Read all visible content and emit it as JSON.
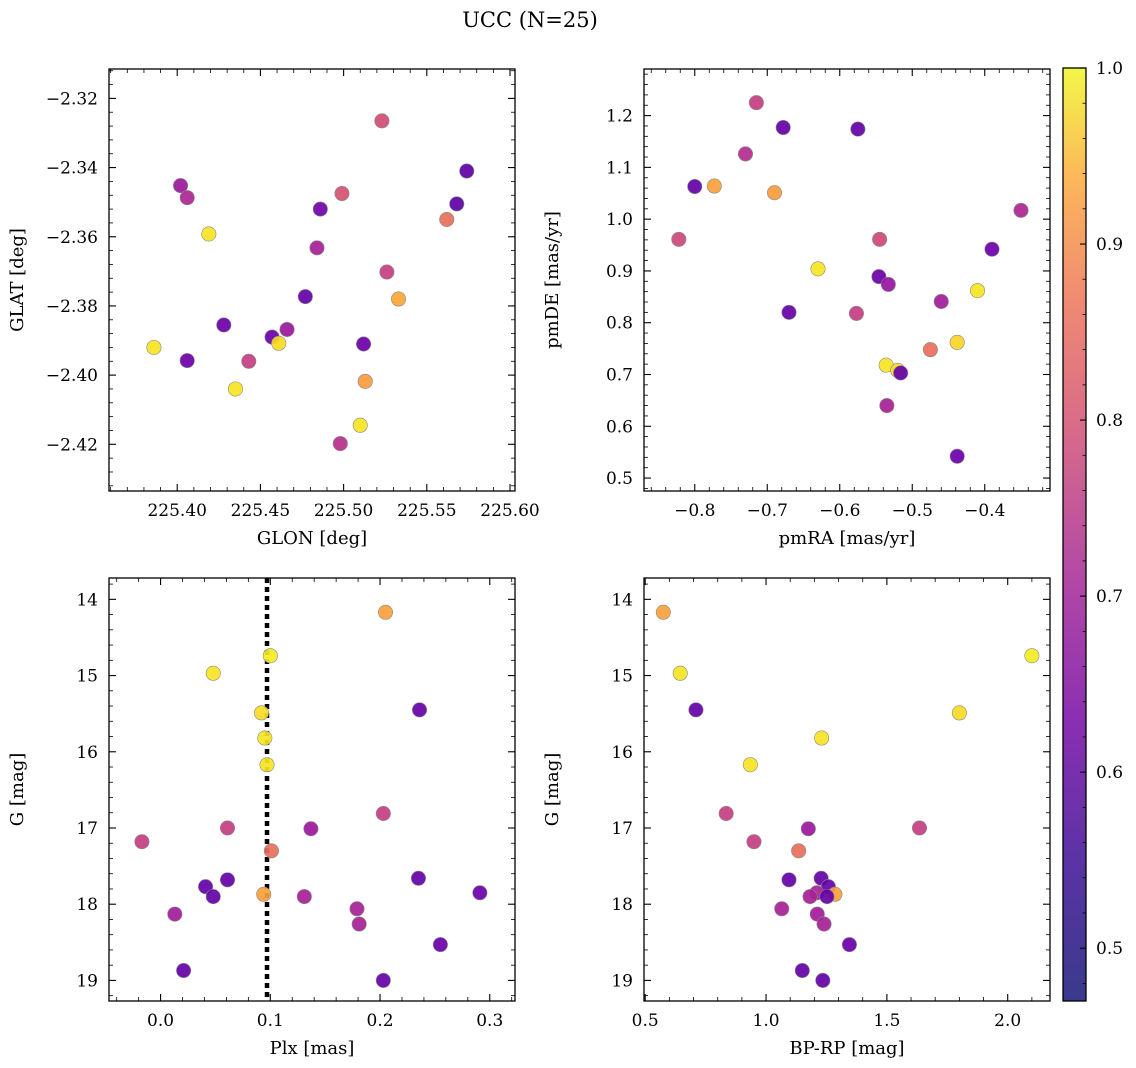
{
  "title": "UCC (N=25)",
  "colorbar": {
    "min": 0.47,
    "max": 1.0,
    "ticks": [
      0.5,
      0.6,
      0.7,
      0.8,
      0.9,
      1.0
    ],
    "tick_labels": [
      "0.5",
      "0.6",
      "0.7",
      "0.8",
      "0.9",
      "1.0"
    ],
    "colormap": "plasma"
  },
  "chart_data": [
    {
      "type": "scatter",
      "name": "glon-glat",
      "xlabel": "GLON [deg]",
      "ylabel": "GLAT [deg]",
      "xlim": [
        225.359,
        225.603
      ],
      "ylim": [
        -2.4335,
        -2.3115
      ],
      "xticks": [
        225.4,
        225.45,
        225.5,
        225.55,
        225.6
      ],
      "xtick_labels": [
        "225.40",
        "225.45",
        "225.50",
        "225.55",
        "225.60"
      ],
      "yticks": [
        -2.42,
        -2.4,
        -2.38,
        -2.36,
        -2.34,
        -2.32
      ],
      "ytick_labels": [
        "−2.42",
        "−2.40",
        "−2.38",
        "−2.36",
        "−2.34",
        "−2.32"
      ],
      "points": [
        {
          "x": 225.523,
          "y": -2.3265,
          "c": 0.71
        },
        {
          "x": 225.574,
          "y": -2.341,
          "c": 0.5
        },
        {
          "x": 225.402,
          "y": -2.3452,
          "c": 0.6
        },
        {
          "x": 225.406,
          "y": -2.3487,
          "c": 0.63
        },
        {
          "x": 225.499,
          "y": -2.3475,
          "c": 0.72
        },
        {
          "x": 225.568,
          "y": -2.3505,
          "c": 0.5
        },
        {
          "x": 225.486,
          "y": -2.352,
          "c": 0.53
        },
        {
          "x": 225.562,
          "y": -2.355,
          "c": 0.78
        },
        {
          "x": 225.419,
          "y": -2.3592,
          "c": 0.97
        },
        {
          "x": 225.484,
          "y": -2.3632,
          "c": 0.62
        },
        {
          "x": 225.526,
          "y": -2.3702,
          "c": 0.68
        },
        {
          "x": 225.477,
          "y": -2.3773,
          "c": 0.51
        },
        {
          "x": 225.533,
          "y": -2.378,
          "c": 0.88
        },
        {
          "x": 225.428,
          "y": -2.3855,
          "c": 0.52
        },
        {
          "x": 225.466,
          "y": -2.3868,
          "c": 0.6
        },
        {
          "x": 225.457,
          "y": -2.389,
          "c": 0.52
        },
        {
          "x": 225.512,
          "y": -2.391,
          "c": 0.52
        },
        {
          "x": 225.461,
          "y": -2.3908,
          "c": 0.96
        },
        {
          "x": 225.386,
          "y": -2.392,
          "c": 0.97
        },
        {
          "x": 225.406,
          "y": -2.3958,
          "c": 0.52
        },
        {
          "x": 225.443,
          "y": -2.396,
          "c": 0.68
        },
        {
          "x": 225.513,
          "y": -2.4018,
          "c": 0.86
        },
        {
          "x": 225.435,
          "y": -2.404,
          "c": 0.97
        },
        {
          "x": 225.51,
          "y": -2.4145,
          "c": 0.97
        },
        {
          "x": 225.498,
          "y": -2.4198,
          "c": 0.65
        }
      ]
    },
    {
      "type": "scatter",
      "name": "pmra-pmde",
      "xlabel": "pmRA [mas/yr]",
      "ylabel": "pmDE [mas/yr]",
      "xlim": [
        -0.87,
        -0.31
      ],
      "ylim": [
        0.475,
        1.29
      ],
      "xticks": [
        -0.8,
        -0.7,
        -0.6,
        -0.5,
        -0.4
      ],
      "xtick_labels": [
        "−0.8",
        "−0.7",
        "−0.6",
        "−0.5",
        "−0.4"
      ],
      "yticks": [
        0.5,
        0.6,
        0.7,
        0.8,
        0.9,
        1.0,
        1.1,
        1.2
      ],
      "ytick_labels": [
        "0.5",
        "0.6",
        "0.7",
        "0.8",
        "0.9",
        "1.0",
        "1.1",
        "1.2"
      ],
      "points": [
        {
          "x": -0.715,
          "y": 1.225,
          "c": 0.68
        },
        {
          "x": -0.678,
          "y": 1.177,
          "c": 0.51
        },
        {
          "x": -0.575,
          "y": 1.174,
          "c": 0.51
        },
        {
          "x": -0.73,
          "y": 1.126,
          "c": 0.64
        },
        {
          "x": -0.8,
          "y": 1.063,
          "c": 0.51
        },
        {
          "x": -0.773,
          "y": 1.064,
          "c": 0.87
        },
        {
          "x": -0.69,
          "y": 1.051,
          "c": 0.86
        },
        {
          "x": -0.35,
          "y": 1.017,
          "c": 0.63
        },
        {
          "x": -0.822,
          "y": 0.961,
          "c": 0.7
        },
        {
          "x": -0.545,
          "y": 0.961,
          "c": 0.7
        },
        {
          "x": -0.39,
          "y": 0.942,
          "c": 0.52
        },
        {
          "x": -0.63,
          "y": 0.904,
          "c": 0.97
        },
        {
          "x": -0.546,
          "y": 0.889,
          "c": 0.52
        },
        {
          "x": -0.533,
          "y": 0.874,
          "c": 0.59
        },
        {
          "x": -0.41,
          "y": 0.862,
          "c": 0.97
        },
        {
          "x": -0.46,
          "y": 0.841,
          "c": 0.61
        },
        {
          "x": -0.67,
          "y": 0.82,
          "c": 0.51
        },
        {
          "x": -0.577,
          "y": 0.818,
          "c": 0.68
        },
        {
          "x": -0.438,
          "y": 0.762,
          "c": 0.95
        },
        {
          "x": -0.475,
          "y": 0.748,
          "c": 0.78
        },
        {
          "x": -0.536,
          "y": 0.718,
          "c": 0.97
        },
        {
          "x": -0.52,
          "y": 0.708,
          "c": 0.96
        },
        {
          "x": -0.516,
          "y": 0.703,
          "c": 0.51
        },
        {
          "x": -0.535,
          "y": 0.64,
          "c": 0.62
        },
        {
          "x": -0.438,
          "y": 0.542,
          "c": 0.52
        }
      ]
    },
    {
      "type": "scatter",
      "name": "plx-g",
      "xlabel": "Plx [mas]",
      "ylabel": "G [mag]",
      "xlim": [
        -0.047,
        0.323
      ],
      "ylim": [
        19.27,
        13.72
      ],
      "xticks": [
        0.0,
        0.1,
        0.2,
        0.3
      ],
      "xtick_labels": [
        "0.0",
        "0.1",
        "0.2",
        "0.3"
      ],
      "yticks": [
        14,
        15,
        16,
        17,
        18,
        19
      ],
      "ytick_labels": [
        "14",
        "15",
        "16",
        "17",
        "18",
        "19"
      ],
      "vline": 0.097,
      "points": [
        {
          "x": 0.205,
          "y": 14.17,
          "c": 0.87
        },
        {
          "x": 0.1,
          "y": 14.74,
          "c": 0.98
        },
        {
          "x": 0.048,
          "y": 14.97,
          "c": 0.97
        },
        {
          "x": 0.236,
          "y": 15.45,
          "c": 0.51
        },
        {
          "x": 0.092,
          "y": 15.49,
          "c": 0.96
        },
        {
          "x": 0.095,
          "y": 15.82,
          "c": 0.97
        },
        {
          "x": 0.097,
          "y": 16.17,
          "c": 0.97
        },
        {
          "x": 0.203,
          "y": 16.81,
          "c": 0.68
        },
        {
          "x": 0.061,
          "y": 17.0,
          "c": 0.68
        },
        {
          "x": 0.137,
          "y": 17.01,
          "c": 0.6
        },
        {
          "x": -0.017,
          "y": 17.18,
          "c": 0.68
        },
        {
          "x": 0.101,
          "y": 17.3,
          "c": 0.78
        },
        {
          "x": 0.235,
          "y": 17.66,
          "c": 0.51
        },
        {
          "x": 0.061,
          "y": 17.68,
          "c": 0.51
        },
        {
          "x": 0.041,
          "y": 17.77,
          "c": 0.51
        },
        {
          "x": 0.291,
          "y": 17.85,
          "c": 0.52
        },
        {
          "x": 0.094,
          "y": 17.87,
          "c": 0.87
        },
        {
          "x": 0.048,
          "y": 17.9,
          "c": 0.51
        },
        {
          "x": 0.131,
          "y": 17.9,
          "c": 0.62
        },
        {
          "x": 0.179,
          "y": 18.06,
          "c": 0.62
        },
        {
          "x": 0.013,
          "y": 18.13,
          "c": 0.61
        },
        {
          "x": 0.181,
          "y": 18.26,
          "c": 0.62
        },
        {
          "x": 0.255,
          "y": 18.53,
          "c": 0.52
        },
        {
          "x": 0.021,
          "y": 18.87,
          "c": 0.51
        },
        {
          "x": 0.203,
          "y": 19.0,
          "c": 0.51
        }
      ]
    },
    {
      "type": "scatter",
      "name": "bprp-g",
      "xlabel": "BP-RP [mag]",
      "ylabel": "G [mag]",
      "xlim": [
        0.495,
        2.175
      ],
      "ylim": [
        19.27,
        13.72
      ],
      "xticks": [
        0.5,
        1.0,
        1.5,
        2.0
      ],
      "xtick_labels": [
        "0.5",
        "1.0",
        "1.5",
        "2.0"
      ],
      "yticks": [
        14,
        15,
        16,
        17,
        18,
        19
      ],
      "ytick_labels": [
        "14",
        "15",
        "16",
        "17",
        "18",
        "19"
      ],
      "points": [
        {
          "x": 0.575,
          "y": 14.17,
          "c": 0.87
        },
        {
          "x": 2.1,
          "y": 14.74,
          "c": 0.98
        },
        {
          "x": 0.645,
          "y": 14.97,
          "c": 0.97
        },
        {
          "x": 0.71,
          "y": 15.45,
          "c": 0.51
        },
        {
          "x": 1.8,
          "y": 15.49,
          "c": 0.96
        },
        {
          "x": 1.23,
          "y": 15.82,
          "c": 0.97
        },
        {
          "x": 0.935,
          "y": 16.17,
          "c": 0.97
        },
        {
          "x": 0.835,
          "y": 16.81,
          "c": 0.68
        },
        {
          "x": 1.635,
          "y": 17.0,
          "c": 0.68
        },
        {
          "x": 1.175,
          "y": 17.01,
          "c": 0.6
        },
        {
          "x": 0.95,
          "y": 17.18,
          "c": 0.68
        },
        {
          "x": 1.135,
          "y": 17.3,
          "c": 0.78
        },
        {
          "x": 1.228,
          "y": 17.66,
          "c": 0.51
        },
        {
          "x": 1.095,
          "y": 17.68,
          "c": 0.51
        },
        {
          "x": 1.258,
          "y": 17.77,
          "c": 0.51
        },
        {
          "x": 1.21,
          "y": 17.85,
          "c": 0.62
        },
        {
          "x": 1.285,
          "y": 17.87,
          "c": 0.87
        },
        {
          "x": 1.252,
          "y": 17.9,
          "c": 0.51
        },
        {
          "x": 1.182,
          "y": 17.9,
          "c": 0.62
        },
        {
          "x": 1.065,
          "y": 18.06,
          "c": 0.62
        },
        {
          "x": 1.212,
          "y": 18.13,
          "c": 0.61
        },
        {
          "x": 1.24,
          "y": 18.26,
          "c": 0.62
        },
        {
          "x": 1.345,
          "y": 18.53,
          "c": 0.52
        },
        {
          "x": 1.15,
          "y": 18.87,
          "c": 0.51
        },
        {
          "x": 1.235,
          "y": 19.0,
          "c": 0.51
        }
      ]
    }
  ]
}
